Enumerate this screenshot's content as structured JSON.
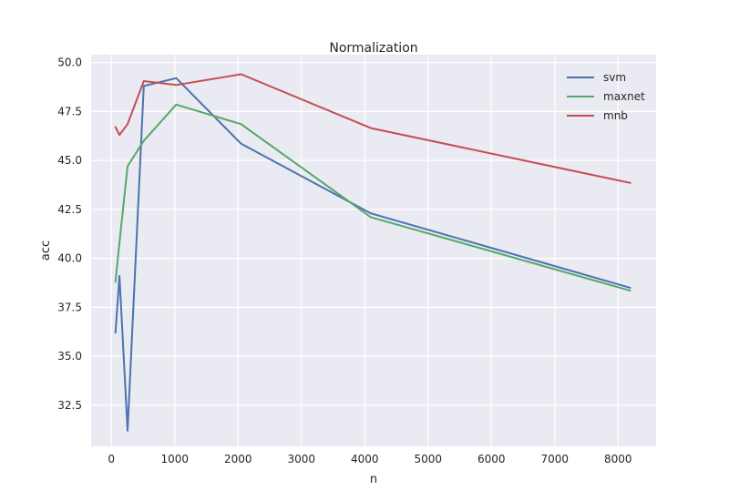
{
  "chart_data": {
    "type": "line",
    "title": "Normalization",
    "xlabel": "n",
    "ylabel": "acc",
    "xlim": [
      -320,
      8600
    ],
    "ylim": [
      30.4,
      50.4
    ],
    "xticks": [
      0,
      1000,
      2000,
      3000,
      4000,
      5000,
      6000,
      7000,
      8000
    ],
    "yticks": [
      32.5,
      35.0,
      37.5,
      40.0,
      42.5,
      45.0,
      47.5,
      50.0
    ],
    "xtick_labels": [
      "0",
      "1000",
      "2000",
      "3000",
      "4000",
      "5000",
      "6000",
      "7000",
      "8000"
    ],
    "ytick_labels": [
      "32.5",
      "35.0",
      "37.5",
      "40.0",
      "42.5",
      "45.0",
      "47.5",
      "50.0"
    ],
    "grid": true,
    "legend_position": "top-right",
    "background": "#eaeaf2",
    "series": [
      {
        "name": "svm",
        "color": "#4c72b0",
        "x": [
          64,
          128,
          256,
          512,
          1024,
          2048,
          4096,
          8192
        ],
        "y": [
          36.2,
          39.1,
          31.2,
          48.8,
          49.2,
          45.85,
          42.3,
          38.5
        ]
      },
      {
        "name": "maxnet",
        "color": "#55a868",
        "x": [
          64,
          128,
          256,
          512,
          1024,
          2048,
          4096,
          8192
        ],
        "y": [
          38.8,
          40.8,
          44.7,
          46.0,
          47.85,
          46.85,
          42.1,
          38.35
        ]
      },
      {
        "name": "mnb",
        "color": "#c44e52",
        "x": [
          64,
          128,
          256,
          512,
          1024,
          2048,
          4096,
          8192
        ],
        "y": [
          46.7,
          46.3,
          46.85,
          49.05,
          48.85,
          49.4,
          46.65,
          43.85
        ]
      }
    ]
  }
}
